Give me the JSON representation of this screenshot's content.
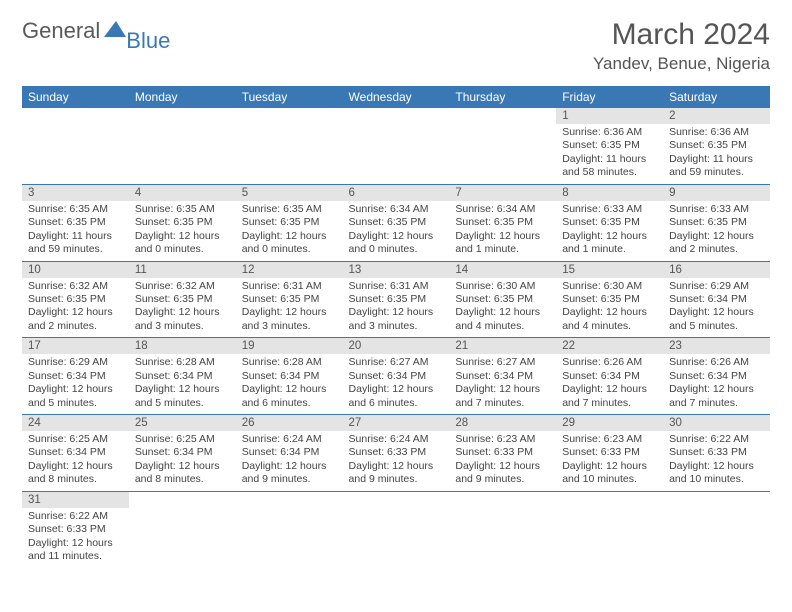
{
  "logo": {
    "text1": "General",
    "text2": "Blue",
    "brand_color": "#3a78b5"
  },
  "title": "March 2024",
  "location": "Yandev, Benue, Nigeria",
  "header_bg": "#3a78b5",
  "daynum_bg": "#e4e4e4",
  "border_color": "#3a78b5",
  "weekdays": [
    "Sunday",
    "Monday",
    "Tuesday",
    "Wednesday",
    "Thursday",
    "Friday",
    "Saturday"
  ],
  "weeks": [
    [
      null,
      null,
      null,
      null,
      null,
      {
        "n": "1",
        "sr": "6:36 AM",
        "ss": "6:35 PM",
        "dl": "11 hours and 58 minutes."
      },
      {
        "n": "2",
        "sr": "6:36 AM",
        "ss": "6:35 PM",
        "dl": "11 hours and 59 minutes."
      }
    ],
    [
      {
        "n": "3",
        "sr": "6:35 AM",
        "ss": "6:35 PM",
        "dl": "11 hours and 59 minutes."
      },
      {
        "n": "4",
        "sr": "6:35 AM",
        "ss": "6:35 PM",
        "dl": "12 hours and 0 minutes."
      },
      {
        "n": "5",
        "sr": "6:35 AM",
        "ss": "6:35 PM",
        "dl": "12 hours and 0 minutes."
      },
      {
        "n": "6",
        "sr": "6:34 AM",
        "ss": "6:35 PM",
        "dl": "12 hours and 0 minutes."
      },
      {
        "n": "7",
        "sr": "6:34 AM",
        "ss": "6:35 PM",
        "dl": "12 hours and 1 minute."
      },
      {
        "n": "8",
        "sr": "6:33 AM",
        "ss": "6:35 PM",
        "dl": "12 hours and 1 minute."
      },
      {
        "n": "9",
        "sr": "6:33 AM",
        "ss": "6:35 PM",
        "dl": "12 hours and 2 minutes."
      }
    ],
    [
      {
        "n": "10",
        "sr": "6:32 AM",
        "ss": "6:35 PM",
        "dl": "12 hours and 2 minutes."
      },
      {
        "n": "11",
        "sr": "6:32 AM",
        "ss": "6:35 PM",
        "dl": "12 hours and 3 minutes."
      },
      {
        "n": "12",
        "sr": "6:31 AM",
        "ss": "6:35 PM",
        "dl": "12 hours and 3 minutes."
      },
      {
        "n": "13",
        "sr": "6:31 AM",
        "ss": "6:35 PM",
        "dl": "12 hours and 3 minutes."
      },
      {
        "n": "14",
        "sr": "6:30 AM",
        "ss": "6:35 PM",
        "dl": "12 hours and 4 minutes."
      },
      {
        "n": "15",
        "sr": "6:30 AM",
        "ss": "6:35 PM",
        "dl": "12 hours and 4 minutes."
      },
      {
        "n": "16",
        "sr": "6:29 AM",
        "ss": "6:34 PM",
        "dl": "12 hours and 5 minutes."
      }
    ],
    [
      {
        "n": "17",
        "sr": "6:29 AM",
        "ss": "6:34 PM",
        "dl": "12 hours and 5 minutes."
      },
      {
        "n": "18",
        "sr": "6:28 AM",
        "ss": "6:34 PM",
        "dl": "12 hours and 5 minutes."
      },
      {
        "n": "19",
        "sr": "6:28 AM",
        "ss": "6:34 PM",
        "dl": "12 hours and 6 minutes."
      },
      {
        "n": "20",
        "sr": "6:27 AM",
        "ss": "6:34 PM",
        "dl": "12 hours and 6 minutes."
      },
      {
        "n": "21",
        "sr": "6:27 AM",
        "ss": "6:34 PM",
        "dl": "12 hours and 7 minutes."
      },
      {
        "n": "22",
        "sr": "6:26 AM",
        "ss": "6:34 PM",
        "dl": "12 hours and 7 minutes."
      },
      {
        "n": "23",
        "sr": "6:26 AM",
        "ss": "6:34 PM",
        "dl": "12 hours and 7 minutes."
      }
    ],
    [
      {
        "n": "24",
        "sr": "6:25 AM",
        "ss": "6:34 PM",
        "dl": "12 hours and 8 minutes."
      },
      {
        "n": "25",
        "sr": "6:25 AM",
        "ss": "6:34 PM",
        "dl": "12 hours and 8 minutes."
      },
      {
        "n": "26",
        "sr": "6:24 AM",
        "ss": "6:34 PM",
        "dl": "12 hours and 9 minutes."
      },
      {
        "n": "27",
        "sr": "6:24 AM",
        "ss": "6:33 PM",
        "dl": "12 hours and 9 minutes."
      },
      {
        "n": "28",
        "sr": "6:23 AM",
        "ss": "6:33 PM",
        "dl": "12 hours and 9 minutes."
      },
      {
        "n": "29",
        "sr": "6:23 AM",
        "ss": "6:33 PM",
        "dl": "12 hours and 10 minutes."
      },
      {
        "n": "30",
        "sr": "6:22 AM",
        "ss": "6:33 PM",
        "dl": "12 hours and 10 minutes."
      }
    ],
    [
      {
        "n": "31",
        "sr": "6:22 AM",
        "ss": "6:33 PM",
        "dl": "12 hours and 11 minutes."
      },
      null,
      null,
      null,
      null,
      null,
      null
    ]
  ],
  "labels": {
    "sunrise": "Sunrise:",
    "sunset": "Sunset:",
    "daylight": "Daylight:"
  }
}
